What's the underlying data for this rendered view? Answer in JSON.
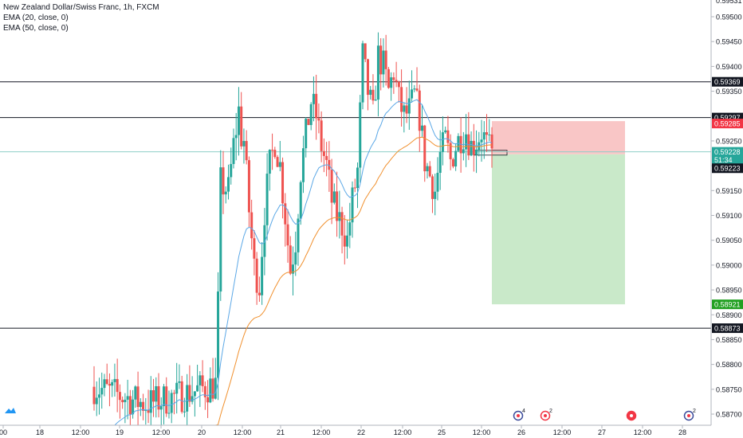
{
  "legend": {
    "title": "New Zealand Dollar/Swiss Franc, 1h, FXCM",
    "ema20": "EMA (20, close, 0)",
    "ema50": "EMA (50, close, 0)"
  },
  "colors": {
    "up": "#26a69a",
    "down": "#ef5350",
    "ema20": "#5aa7e6",
    "ema50": "#f0902e",
    "stop_zone": "#f9c6c6",
    "target_zone": "#c9e9c9",
    "last_price_label": "#26a69a",
    "stop_label": "#f23645",
    "target_label": "#22a022",
    "level_label": "#131722"
  },
  "chart_data": {
    "type": "candlestick",
    "symbol": "New Zealand Dollar/Swiss Franc",
    "timeframe": "1h",
    "ylim": [
      0.58685,
      0.59535
    ],
    "y_ticks": [
      "0.58700",
      "0.58750",
      "0.58800",
      "0.58850",
      "0.58900",
      "0.58950",
      "0.59000",
      "0.59050",
      "0.59100",
      "0.59150",
      "0.59200",
      "0.59250",
      "0.59300",
      "0.59350",
      "0.59400",
      "0.59450",
      "0.59500"
    ],
    "y_top_label": "0.59531",
    "x_labels": [
      "00",
      "18",
      "12:00",
      "19",
      "12:00",
      "20",
      "12:00",
      "21",
      "12:00",
      "22",
      "12:00",
      "25",
      "12:00",
      "26",
      "12:00",
      "27",
      "12:00",
      "28"
    ],
    "horizontal_levels": [
      {
        "label": "0.59369",
        "value": 0.59369
      },
      {
        "label": "0.59297",
        "value": 0.59297
      },
      {
        "label": "0.58873",
        "value": 0.58873
      }
    ],
    "price_labels": [
      {
        "label": "0.59285",
        "value": 0.59285,
        "role": "stop"
      },
      {
        "label": "0.59228",
        "value": 0.59228,
        "role": "last"
      },
      {
        "label": "51:34",
        "value": 0.59212,
        "role": "countdown"
      },
      {
        "label": "0.59223",
        "value": 0.59195,
        "role": "entry"
      },
      {
        "label": "0.58921",
        "value": 0.58921,
        "role": "target"
      }
    ],
    "position": {
      "direction": "short",
      "entry": 0.59223,
      "stop": 0.59285,
      "target": 0.58921
    },
    "event_icons": [
      {
        "near_x": "26",
        "count": "4"
      },
      {
        "near_x": "12:00",
        "count": "2"
      },
      {
        "near_x": "27",
        "count": ""
      },
      {
        "near_x": "28",
        "count": "2"
      }
    ],
    "series": [
      {
        "name": "EMA (20, close, 0)",
        "type": "line"
      },
      {
        "name": "EMA (50, close, 0)",
        "type": "line"
      }
    ]
  }
}
